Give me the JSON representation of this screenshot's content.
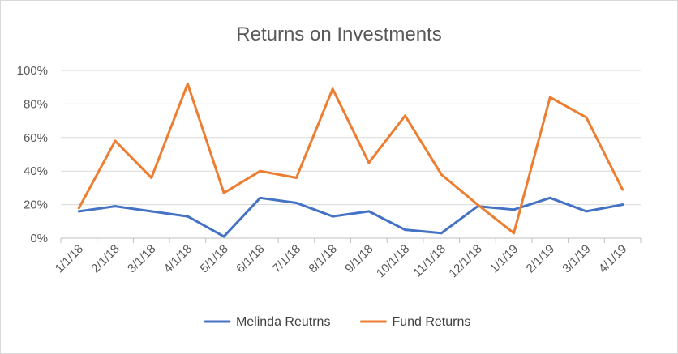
{
  "chart_data": {
    "type": "line",
    "title": "Returns on Investments",
    "xlabel": "",
    "ylabel": "",
    "categories": [
      "1/1/18",
      "2/1/18",
      "3/1/18",
      "4/1/18",
      "5/1/18",
      "6/1/18",
      "7/1/18",
      "8/1/18",
      "9/1/18",
      "10/1/18",
      "11/1/18",
      "12/1/18",
      "1/1/19",
      "2/1/19",
      "3/1/19",
      "4/1/19"
    ],
    "ylim": [
      0,
      100
    ],
    "yticks": [
      "0%",
      "20%",
      "40%",
      "60%",
      "80%",
      "100%"
    ],
    "grid": true,
    "legend_position": "bottom",
    "series": [
      {
        "name": "Melinda Reutrns",
        "color": "#4472c4",
        "values": [
          16,
          19,
          16,
          13,
          1,
          24,
          21,
          13,
          16,
          5,
          3,
          19,
          17,
          24,
          16,
          20
        ]
      },
      {
        "name": "Fund Returns",
        "color": "#ed7d31",
        "values": [
          18,
          58,
          36,
          92,
          27,
          40,
          36,
          89,
          45,
          73,
          38,
          20,
          3,
          84,
          72,
          29
        ]
      }
    ]
  }
}
